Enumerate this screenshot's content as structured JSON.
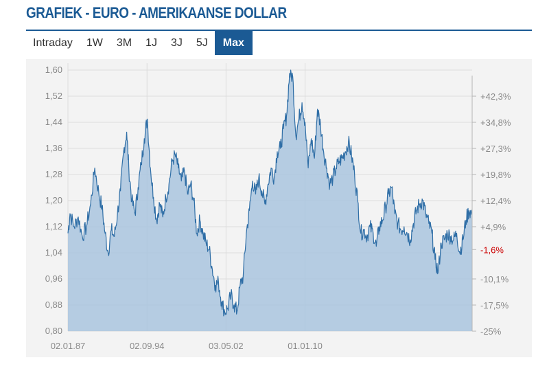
{
  "header": {
    "title": "GRAFIEK - EURO - AMERIKAANSE DOLLAR"
  },
  "tabs": [
    {
      "label": "Intraday",
      "active": false
    },
    {
      "label": "1W",
      "active": false
    },
    {
      "label": "3M",
      "active": false
    },
    {
      "label": "1J",
      "active": false
    },
    {
      "label": "3J",
      "active": false
    },
    {
      "label": "5J",
      "active": false
    },
    {
      "label": "Max",
      "active": true
    }
  ],
  "colors": {
    "brand": "#1b5a94",
    "line": "#2f6ea6",
    "area": "#a9c4de",
    "negative": "#cc0000",
    "axis_text": "#8a8a8a"
  },
  "chart_data": {
    "type": "area",
    "ylim": [
      0.8,
      1.6
    ],
    "y_ticks": [
      "1,60",
      "1,52",
      "1,44",
      "1,36",
      "1,28",
      "1,20",
      "1,12",
      "1,04",
      "0,96",
      "0,88",
      "0,80"
    ],
    "x_ticks": [
      "02.01.87",
      "02.09.94",
      "03.05.02",
      "01.01.10"
    ],
    "right_ticks": [
      {
        "label": "+42,3%",
        "value": 1.52
      },
      {
        "label": "+34,8%",
        "value": 1.44
      },
      {
        "label": "+27,3%",
        "value": 1.36
      },
      {
        "label": "+19,8%",
        "value": 1.28
      },
      {
        "label": "+12,4%",
        "value": 1.2
      },
      {
        "label": "+4,9%",
        "value": 1.12
      },
      {
        "label": "-1,6%",
        "value": 1.05,
        "highlight": true
      },
      {
        "label": "-10,1%",
        "value": 0.96
      },
      {
        "label": "-17,5%",
        "value": 0.88
      },
      {
        "label": "-25%",
        "value": 0.8
      }
    ],
    "grid": true,
    "x_range": [
      1987.0,
      2026.2
    ],
    "x_tick_positions": [
      1987.0,
      1994.67,
      2002.33,
      2010.0
    ],
    "series": [
      {
        "x": [
          1987.0,
          1987.2,
          1987.6,
          1988.0,
          1988.4,
          1988.8,
          1989.2,
          1989.6,
          1990.0,
          1990.3,
          1990.6,
          1990.9,
          1991.2,
          1991.5,
          1991.8,
          1992.1,
          1992.4,
          1992.7,
          1992.9,
          1993.2,
          1993.5,
          1993.8,
          1994.1,
          1994.4,
          1994.7,
          1995.0,
          1995.3,
          1995.6,
          1995.9,
          1996.2,
          1996.5,
          1996.8,
          1997.1,
          1997.4,
          1997.7,
          1998.0,
          1998.3,
          1998.6,
          1998.9,
          1999.2,
          1999.5,
          1999.8,
          2000.1,
          2000.4,
          2000.7,
          2001.0,
          2001.3,
          2001.6,
          2001.9,
          2002.2,
          2002.5,
          2002.8,
          2003.1,
          2003.4,
          2003.7,
          2004.0,
          2004.3,
          2004.6,
          2004.9,
          2005.2,
          2005.5,
          2005.8,
          2006.1,
          2006.4,
          2006.7,
          2007.0,
          2007.3,
          2007.6,
          2007.9,
          2008.2,
          2008.5,
          2008.8,
          2009.1,
          2009.4,
          2009.7,
          2010.0,
          2010.3,
          2010.6,
          2010.9,
          2011.2,
          2011.5,
          2011.8,
          2012.1,
          2012.4,
          2012.7,
          2013.0,
          2013.3,
          2013.6,
          2013.9,
          2014.2,
          2014.5,
          2014.8,
          2015.1,
          2015.4,
          2015.7,
          2016.0,
          2016.3,
          2016.6,
          2016.9,
          2017.2,
          2017.5,
          2017.8,
          2018.1,
          2018.4,
          2018.7,
          2019.0,
          2019.3,
          2019.6,
          2019.9,
          2020.2,
          2020.5,
          2020.8,
          2021.1,
          2021.4,
          2021.7,
          2022.0,
          2022.3,
          2022.6,
          2022.9,
          2023.2,
          2023.5,
          2023.8,
          2024.1,
          2024.4,
          2024.7,
          2025.0,
          2025.3,
          2025.6,
          2025.9,
          2026.2
        ],
        "y": [
          1.1,
          1.16,
          1.12,
          1.15,
          1.09,
          1.12,
          1.19,
          1.3,
          1.22,
          1.18,
          1.1,
          1.04,
          1.11,
          1.09,
          1.16,
          1.23,
          1.35,
          1.41,
          1.3,
          1.2,
          1.16,
          1.24,
          1.31,
          1.39,
          1.45,
          1.3,
          1.21,
          1.14,
          1.19,
          1.15,
          1.21,
          1.25,
          1.32,
          1.34,
          1.3,
          1.26,
          1.29,
          1.22,
          1.25,
          1.2,
          1.1,
          1.14,
          1.1,
          1.07,
          1.05,
          0.99,
          0.94,
          0.95,
          0.89,
          0.86,
          0.87,
          0.91,
          0.88,
          0.86,
          0.94,
          0.97,
          1.1,
          1.17,
          1.26,
          1.22,
          1.27,
          1.23,
          1.19,
          1.25,
          1.3,
          1.27,
          1.35,
          1.36,
          1.42,
          1.46,
          1.59,
          1.58,
          1.4,
          1.45,
          1.5,
          1.44,
          1.3,
          1.39,
          1.33,
          1.48,
          1.43,
          1.35,
          1.3,
          1.25,
          1.27,
          1.3,
          1.32,
          1.33,
          1.35,
          1.38,
          1.34,
          1.28,
          1.2,
          1.1,
          1.11,
          1.09,
          1.12,
          1.1,
          1.06,
          1.12,
          1.14,
          1.18,
          1.22,
          1.24,
          1.16,
          1.13,
          1.11,
          1.12,
          1.1,
          1.08,
          1.13,
          1.17,
          1.19,
          1.2,
          1.16,
          1.13,
          1.1,
          1.02,
          0.98,
          1.07,
          1.08,
          1.1,
          1.09,
          1.08,
          1.1,
          1.04,
          1.08,
          1.14,
          1.17,
          1.16
        ]
      }
    ]
  }
}
